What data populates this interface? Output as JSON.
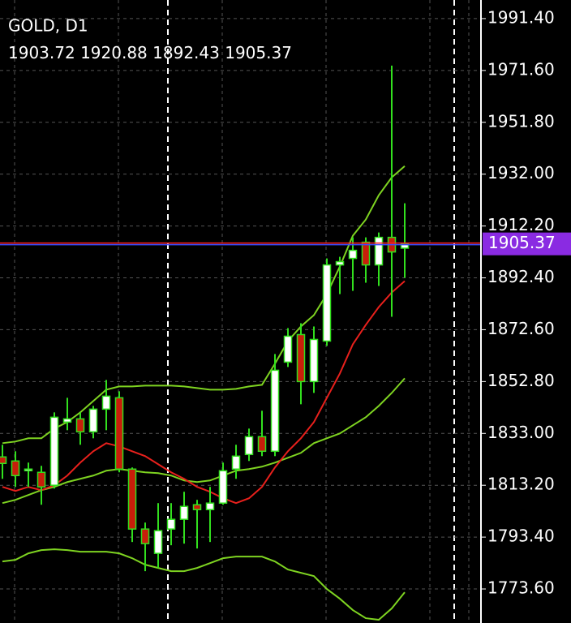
{
  "chart_data": {
    "type": "candlestick",
    "title": "GOLD, D1",
    "open": [
      1824.02,
      1822.47,
      1818.75,
      1818.14,
      1813.2,
      1837.32,
      1838.55,
      1833.61,
      1842.27,
      1846.6,
      1819.37,
      1796.48,
      1787.2,
      1796.48,
      1800.19,
      1805.76,
      1803.9,
      1806.38,
      1819.37,
      1824.94,
      1831.75,
      1826.18,
      1860.22,
      1870.73,
      1852.79,
      1868.26,
      1897.34,
      1899.82,
      1906.0,
      1897.34,
      1907.86,
      1903.72
    ],
    "high": [
      1828.66,
      1826.18,
      1821.85,
      1820.61,
      1841.03,
      1846.6,
      1841.03,
      1843.51,
      1853.41,
      1849.08,
      1820.0,
      1798.95,
      1806.38,
      1806.38,
      1810.71,
      1807.62,
      1812.57,
      1821.85,
      1828.66,
      1834.84,
      1841.65,
      1863.31,
      1873.21,
      1875.07,
      1873.83,
      1899.82,
      1900.44,
      1907.86,
      1907.86,
      1909.72,
      1973.45,
      1920.88
    ],
    "low": [
      1815.66,
      1812.57,
      1812.57,
      1805.76,
      1811.95,
      1834.22,
      1828.66,
      1831.13,
      1834.22,
      1818.14,
      1791.53,
      1780.39,
      1781.63,
      1790.29,
      1790.91,
      1789.05,
      1791.53,
      1805.76,
      1815.66,
      1822.47,
      1824.32,
      1824.32,
      1858.36,
      1844.13,
      1848.46,
      1866.4,
      1886.2,
      1887.44,
      1890.54,
      1889.3,
      1877.54,
      1892.43
    ],
    "close": [
      1821.54,
      1816.9,
      1819.37,
      1812.57,
      1839.17,
      1838.55,
      1833.61,
      1842.27,
      1847.22,
      1819.37,
      1796.48,
      1790.91,
      1795.86,
      1800.19,
      1805.14,
      1803.9,
      1806.38,
      1818.75,
      1824.32,
      1831.75,
      1826.18,
      1857.12,
      1870.11,
      1852.79,
      1868.88,
      1897.34,
      1898.58,
      1902.91,
      1897.34,
      1907.86,
      1902.29,
      1905.37
    ],
    "overlays": [
      {
        "color": "#7ed321",
        "values": [
          1829.27,
          1829.89,
          1831.13,
          1831.13,
          1834.84,
          1837.32,
          1841.03,
          1845.36,
          1849.69,
          1850.93,
          1850.93,
          1851.24,
          1851.24,
          1851.24,
          1850.93,
          1850.31,
          1849.69,
          1849.69,
          1850.0,
          1850.93,
          1851.55,
          1859.6,
          1868.26,
          1873.83,
          1878.16,
          1886.2,
          1896.72,
          1908.48,
          1914.67,
          1923.95,
          1930.76,
          1935.09
        ]
      },
      {
        "color": "#7ed321",
        "values": [
          1806.38,
          1807.62,
          1809.47,
          1811.33,
          1812.57,
          1814.42,
          1815.66,
          1816.9,
          1818.75,
          1819.37,
          1818.75,
          1818.14,
          1817.83,
          1816.9,
          1815.04,
          1814.42,
          1815.04,
          1816.9,
          1818.75,
          1819.37,
          1820.3,
          1821.85,
          1823.71,
          1825.56,
          1829.27,
          1831.13,
          1832.99,
          1836.08,
          1839.18,
          1843.51,
          1848.46,
          1854.03
        ]
      },
      {
        "color": "#7ed321",
        "values": [
          1784.1,
          1784.72,
          1787.2,
          1788.43,
          1788.74,
          1788.43,
          1787.81,
          1787.81,
          1787.81,
          1787.2,
          1785.34,
          1782.86,
          1781.63,
          1780.39,
          1780.39,
          1781.63,
          1783.48,
          1785.34,
          1785.96,
          1785.96,
          1785.96,
          1784.1,
          1781.01,
          1779.77,
          1778.53,
          1773.58,
          1769.87,
          1765.54,
          1762.44,
          1761.83,
          1766.16,
          1772.34
        ]
      },
      {
        "color": "#e8201c",
        "values": [
          1812.57,
          1811.02,
          1812.57,
          1811.33,
          1813.2,
          1816.9,
          1821.85,
          1826.18,
          1829.27,
          1828.04,
          1826.18,
          1824.32,
          1821.23,
          1818.14,
          1815.66,
          1812.57,
          1810.71,
          1808.24,
          1806.38,
          1808.24,
          1812.57,
          1820.0,
          1826.18,
          1831.13,
          1837.32,
          1846.6,
          1855.88,
          1867.02,
          1874.45,
          1881.25,
          1886.82,
          1891.15
        ]
      }
    ],
    "ylim": [
      1760.6,
      1998.5
    ],
    "yticks": [
      {
        "value": 1991.4,
        "label": "1991.40"
      },
      {
        "value": 1971.6,
        "label": "1971.60"
      },
      {
        "value": 1951.8,
        "label": "1951.80"
      },
      {
        "value": 1932.0,
        "label": "1932.00"
      },
      {
        "value": 1912.2,
        "label": "1912.20"
      },
      {
        "value": 1892.4,
        "label": "1892.40"
      },
      {
        "value": 1872.6,
        "label": "1872.60"
      },
      {
        "value": 1852.8,
        "label": "1852.80"
      },
      {
        "value": 1833.0,
        "label": "1833.00"
      },
      {
        "value": 1813.2,
        "label": "1813.20"
      },
      {
        "value": 1793.4,
        "label": "1793.40"
      },
      {
        "value": 1773.6,
        "label": "1773.60"
      }
    ],
    "grid": true,
    "up_color": "#ffffff",
    "down_color": "#c81e0a",
    "wick_color": "#32e01e"
  }
}
